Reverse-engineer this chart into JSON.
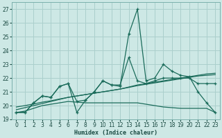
{
  "xlabel": "Humidex (Indice chaleur)",
  "background_color": "#cde8e5",
  "grid_color": "#aacfcc",
  "line_color": "#1a6b5a",
  "xlim": [
    -0.5,
    23.5
  ],
  "ylim": [
    19,
    27.5
  ],
  "yticks": [
    19,
    20,
    21,
    22,
    23,
    24,
    25,
    26,
    27
  ],
  "xticks": [
    0,
    1,
    2,
    3,
    4,
    5,
    6,
    7,
    8,
    9,
    10,
    11,
    12,
    13,
    14,
    15,
    16,
    17,
    18,
    19,
    20,
    21,
    22,
    23
  ],
  "series_main": [
    19.5,
    19.5,
    20.2,
    20.7,
    20.6,
    21.4,
    21.6,
    19.5,
    20.4,
    21.0,
    21.8,
    21.5,
    21.4,
    25.2,
    27.0,
    21.8,
    22.0,
    23.0,
    22.5,
    22.2,
    22.1,
    21.0,
    20.2,
    19.5
  ],
  "series_second": [
    19.5,
    19.5,
    20.2,
    20.7,
    20.6,
    21.4,
    21.6,
    20.3,
    20.4,
    21.0,
    21.8,
    21.5,
    21.5,
    23.5,
    21.8,
    21.6,
    21.8,
    22.0,
    22.0,
    22.0,
    22.0,
    21.6,
    21.6,
    21.6
  ],
  "series_flat": [
    19.5,
    19.6,
    19.8,
    20.0,
    20.1,
    20.2,
    20.3,
    20.25,
    20.2,
    20.2,
    20.2,
    20.2,
    20.2,
    20.2,
    20.2,
    20.1,
    20.0,
    19.9,
    19.85,
    19.8,
    19.8,
    19.8,
    19.8,
    19.5
  ],
  "reg1": [
    19.7,
    19.85,
    20.0,
    20.15,
    20.3,
    20.45,
    20.6,
    20.7,
    20.8,
    20.9,
    21.0,
    21.1,
    21.2,
    21.35,
    21.5,
    21.6,
    21.7,
    21.8,
    21.9,
    22.0,
    22.1,
    22.2,
    22.3,
    22.35
  ],
  "reg2": [
    19.9,
    20.0,
    20.12,
    20.25,
    20.35,
    20.48,
    20.6,
    20.7,
    20.8,
    20.9,
    21.0,
    21.1,
    21.2,
    21.32,
    21.45,
    21.55,
    21.65,
    21.75,
    21.85,
    21.95,
    22.05,
    22.15,
    22.2,
    22.25
  ]
}
